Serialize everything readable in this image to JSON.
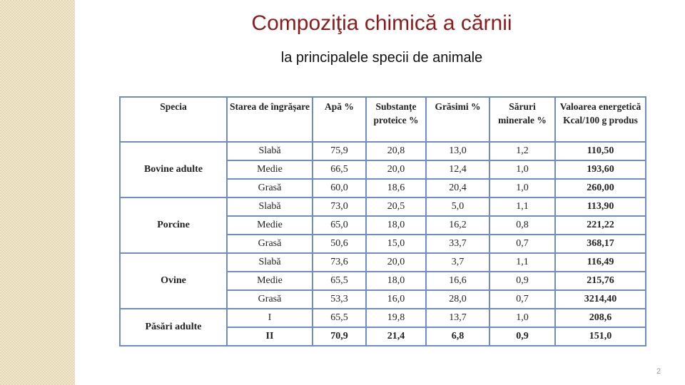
{
  "header": {
    "title": "Compoziţia chimică a cărnii",
    "subtitle": "la principalele specii de animale"
  },
  "table": {
    "columns": [
      "Specia",
      "Starea de îngrășare",
      "Apă %",
      "Substanțe proteice %",
      "Grăsimi %",
      "Săruri minerale %",
      "Valoarea energetică Kcal/100 g produs"
    ],
    "groups": [
      {
        "species": "Bovine adulte",
        "rows": [
          [
            "Slabă",
            "75,9",
            "20,8",
            "13,0",
            "1,2",
            "110,50"
          ],
          [
            "Medie",
            "66,5",
            "20,0",
            "12,4",
            "1,0",
            "193,60"
          ],
          [
            "Grasă",
            "60,0",
            "18,6",
            "20,4",
            "1,0",
            "260,00"
          ]
        ]
      },
      {
        "species": "Porcine",
        "rows": [
          [
            "Slabă",
            "73,0",
            "20,5",
            "5,0",
            "1,1",
            "113,90"
          ],
          [
            "Medie",
            "65,0",
            "18,0",
            "16,2",
            "0,8",
            "221,22"
          ],
          [
            "Grasă",
            "50,6",
            "15,0",
            "33,7",
            "0,7",
            "368,17"
          ]
        ]
      },
      {
        "species": "Ovine",
        "rows": [
          [
            "Slabă",
            "73,6",
            "20,0",
            "3,7",
            "1,1",
            "116,49"
          ],
          [
            "Medie",
            "65,5",
            "18,0",
            "16,6",
            "0,9",
            "215,76"
          ],
          [
            "Grasă",
            "53,3",
            "16,0",
            "28,0",
            "0,7",
            "3214,40"
          ]
        ]
      },
      {
        "species": "Păsări adulte",
        "rows": [
          [
            "I",
            "65,5",
            "19,8",
            "13,7",
            "1,0",
            "208,6"
          ],
          [
            "II",
            "70,9",
            "21,4",
            "6,8",
            "0,9",
            "151,0"
          ]
        ]
      }
    ]
  },
  "footer": {
    "page_number": "2"
  }
}
